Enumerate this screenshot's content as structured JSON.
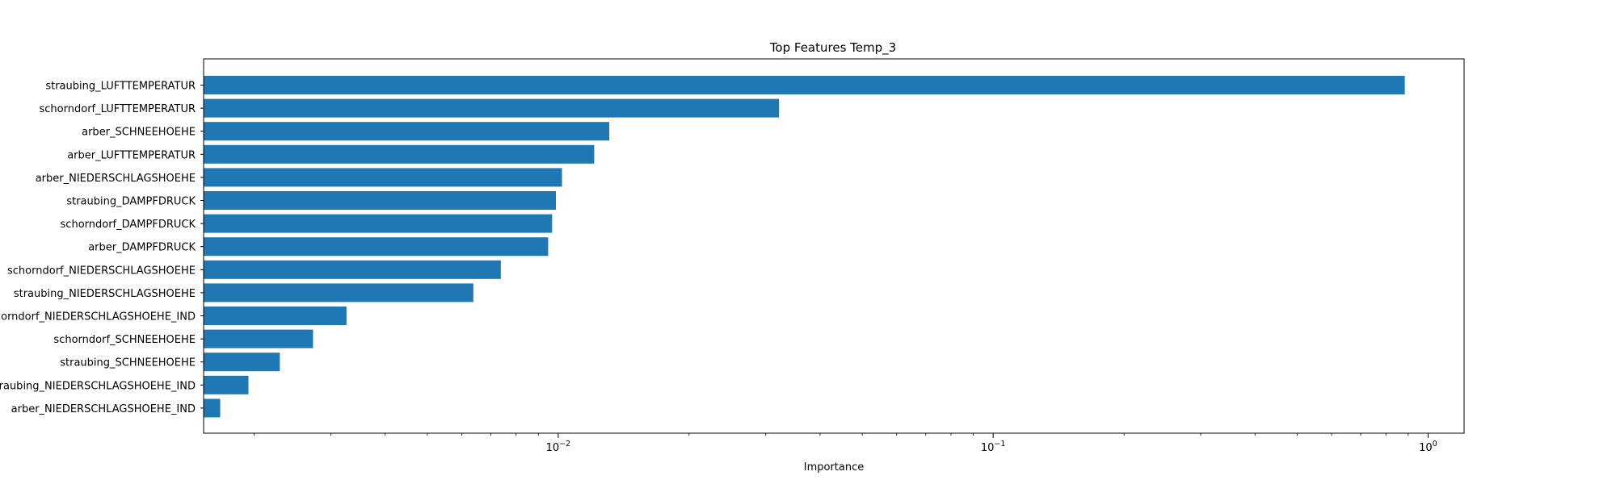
{
  "chart_data": {
    "type": "bar",
    "orientation": "horizontal",
    "title": "Top Features Temp_3",
    "xlabel": "Importance",
    "ylabel": "",
    "x_scale": "log",
    "xlim": [
      0.00153,
      1.21
    ],
    "grid": false,
    "bar_color": "#1f77b4",
    "categories": [
      "straubing_LUFTTEMPERATUR",
      "schorndorf_LUFTTEMPERATUR",
      "arber_SCHNEEHOEHE",
      "arber_LUFTTEMPERATUR",
      "arber_NIEDERSCHLAGSHOEHE",
      "straubing_DAMPFDRUCK",
      "schorndorf_DAMPFDRUCK",
      "arber_DAMPFDRUCK",
      "schorndorf_NIEDERSCHLAGSHOEHE",
      "straubing_NIEDERSCHLAGSHOEHE",
      "schorndorf_NIEDERSCHLAGSHOEHE_IND",
      "schorndorf_SCHNEEHOEHE",
      "straubing_SCHNEEHOEHE",
      "straubing_NIEDERSCHLAGSHOEHE_IND",
      "arber_NIEDERSCHLAGSHOEHE_IND"
    ],
    "values": [
      0.884,
      0.0322,
      0.0131,
      0.0121,
      0.0102,
      0.00988,
      0.00968,
      0.00948,
      0.00738,
      0.00638,
      0.00326,
      0.00273,
      0.00229,
      0.00194,
      0.00167
    ],
    "x_ticks_major": [
      {
        "value": 0.01,
        "base": "10",
        "exp": "−2"
      },
      {
        "value": 0.1,
        "base": "10",
        "exp": "−1"
      },
      {
        "value": 1,
        "base": "10",
        "exp": "0"
      }
    ]
  }
}
